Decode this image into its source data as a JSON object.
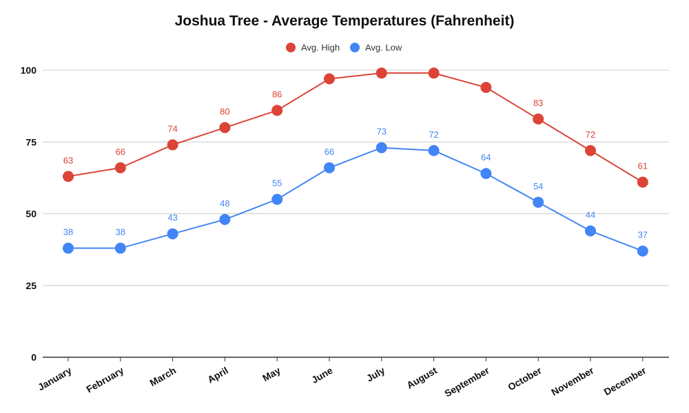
{
  "chart_data": {
    "type": "line",
    "title": "Joshua Tree - Average Temperatures (Fahrenheit)",
    "xlabel": "",
    "ylabel": "",
    "ylim": [
      0,
      100
    ],
    "yticks": [
      0,
      25,
      50,
      75,
      100
    ],
    "grid": true,
    "legend_position": "top-center",
    "categories": [
      "January",
      "February",
      "March",
      "April",
      "May",
      "June",
      "July",
      "August",
      "September",
      "October",
      "November",
      "December"
    ],
    "series": [
      {
        "name": "Avg. High",
        "color": "#db4437",
        "values": [
          63,
          66,
          74,
          80,
          86,
          97,
          99,
          99,
          94,
          83,
          72,
          61
        ],
        "show_labels": [
          true,
          true,
          true,
          true,
          true,
          false,
          false,
          false,
          false,
          true,
          true,
          true
        ]
      },
      {
        "name": "Avg. Low",
        "color": "#4285f4",
        "values": [
          38,
          38,
          43,
          48,
          55,
          66,
          73,
          72,
          64,
          54,
          44,
          37
        ],
        "show_labels": [
          true,
          true,
          true,
          true,
          true,
          true,
          true,
          true,
          true,
          true,
          true,
          true
        ]
      }
    ]
  }
}
